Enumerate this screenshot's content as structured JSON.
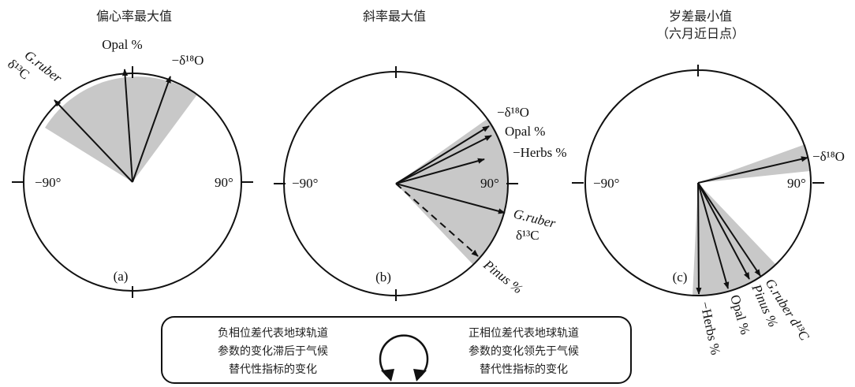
{
  "panels": [
    {
      "id": "a",
      "title": "偏心率最大值",
      "subtitle": "",
      "letter": "(a)",
      "tick_left": "−90°",
      "tick_right": "90°",
      "labels": {
        "opal": "Opal %",
        "d18o": "−δ¹⁸O",
        "gruber": "G.ruber",
        "d13c": "δ¹³C"
      }
    },
    {
      "id": "b",
      "title": "斜率最大值",
      "subtitle": "",
      "letter": "(b)",
      "tick_left": "−90°",
      "tick_right": "90°",
      "labels": {
        "d18o": "−δ¹⁸O",
        "opal": "Opal %",
        "herbs": "−Herbs %",
        "gruber": "G.ruber",
        "d13c": "δ¹³C",
        "pinus": "Pinus %"
      }
    },
    {
      "id": "c",
      "title": "岁差最小值",
      "subtitle": "（六月近日点）",
      "letter": "(c)",
      "tick_left": "−90°",
      "tick_right": "90°",
      "labels": {
        "d18o": "−δ¹⁸O",
        "herbs": "−Herbs %",
        "opal": "Opal %",
        "pinus": "Pinus %",
        "gruber": "G.ruber  d¹³C"
      }
    }
  ],
  "legend": {
    "left_line1": "负相位差代表地球轨道",
    "left_line2": "参数的变化滞后于气候",
    "left_line3": "替代性指标的变化",
    "right_line1": "正相位差代表地球轨道",
    "right_line2": "参数的变化领先于气候",
    "right_line3": "替代性指标的变化"
  },
  "colors": {
    "shade": "#c8c8c8",
    "stroke": "#111111"
  }
}
